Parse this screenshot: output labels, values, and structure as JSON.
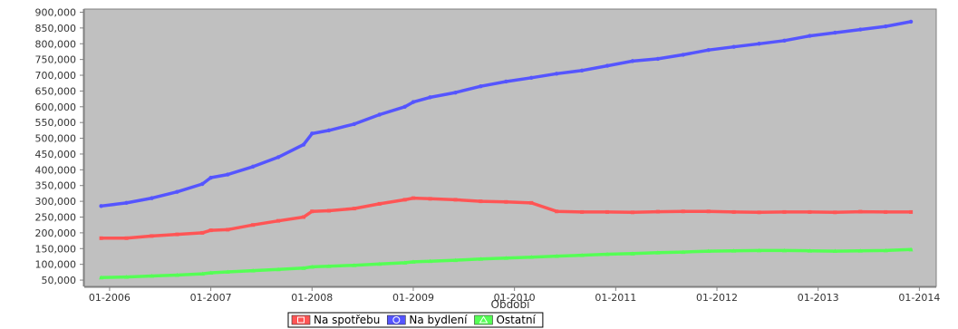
{
  "chart_data": {
    "type": "line",
    "xlabel": "Období",
    "ylabel": "",
    "ylim": [
      30000,
      910000
    ],
    "y_ticks": [
      50000,
      100000,
      150000,
      200000,
      250000,
      300000,
      350000,
      400000,
      450000,
      500000,
      550000,
      600000,
      650000,
      700000,
      750000,
      800000,
      850000,
      900000
    ],
    "y_tick_labels": [
      "50,000",
      "100,000",
      "150,000",
      "200,000",
      "250,000",
      "300,000",
      "350,000",
      "400,000",
      "450,000",
      "500,000",
      "550,000",
      "600,000",
      "650,000",
      "700,000",
      "750,000",
      "800,000",
      "850,000",
      "900,000"
    ],
    "x_range": [
      "2005-10",
      "2014-03"
    ],
    "x_ticks": [
      "2006-01",
      "2007-01",
      "2008-01",
      "2009-01",
      "2010-01",
      "2011-01",
      "2012-01",
      "2013-01",
      "2014-01"
    ],
    "x_tick_labels": [
      "01-2006",
      "01-2007",
      "01-2008",
      "01-2009",
      "01-2010",
      "01-2011",
      "01-2012",
      "01-2013",
      "01-2014"
    ],
    "grid": false,
    "legend_position": "bottom-center",
    "plot_background": "#c0c0c0",
    "series": [
      {
        "name": "Na spotřebu",
        "color": "#ff5555",
        "marker": "square",
        "points": [
          [
            "2005-12",
            183000
          ],
          [
            "2006-03",
            183000
          ],
          [
            "2006-06",
            190000
          ],
          [
            "2006-09",
            195000
          ],
          [
            "2006-12",
            200000
          ],
          [
            "2007-01",
            208000
          ],
          [
            "2007-03",
            210000
          ],
          [
            "2007-06",
            225000
          ],
          [
            "2007-09",
            238000
          ],
          [
            "2007-12",
            250000
          ],
          [
            "2008-01",
            268000
          ],
          [
            "2008-03",
            270000
          ],
          [
            "2008-06",
            277000
          ],
          [
            "2008-09",
            292000
          ],
          [
            "2008-12",
            305000
          ],
          [
            "2009-01",
            310000
          ],
          [
            "2009-03",
            308000
          ],
          [
            "2009-06",
            305000
          ],
          [
            "2009-09",
            300000
          ],
          [
            "2009-12",
            298000
          ],
          [
            "2010-03",
            295000
          ],
          [
            "2010-06",
            268000
          ],
          [
            "2010-09",
            266000
          ],
          [
            "2010-12",
            266000
          ],
          [
            "2011-03",
            265000
          ],
          [
            "2011-06",
            267000
          ],
          [
            "2011-09",
            268000
          ],
          [
            "2011-12",
            268000
          ],
          [
            "2012-03",
            266000
          ],
          [
            "2012-06",
            265000
          ],
          [
            "2012-09",
            266000
          ],
          [
            "2012-12",
            266000
          ],
          [
            "2013-03",
            265000
          ],
          [
            "2013-06",
            267000
          ],
          [
            "2013-09",
            266000
          ],
          [
            "2013-12",
            266000
          ]
        ]
      },
      {
        "name": "Na bydlení",
        "color": "#5555ff",
        "marker": "circle",
        "points": [
          [
            "2005-12",
            285000
          ],
          [
            "2006-03",
            295000
          ],
          [
            "2006-06",
            310000
          ],
          [
            "2006-09",
            330000
          ],
          [
            "2006-12",
            355000
          ],
          [
            "2007-01",
            375000
          ],
          [
            "2007-03",
            385000
          ],
          [
            "2007-06",
            410000
          ],
          [
            "2007-09",
            440000
          ],
          [
            "2007-12",
            480000
          ],
          [
            "2008-01",
            515000
          ],
          [
            "2008-03",
            525000
          ],
          [
            "2008-06",
            545000
          ],
          [
            "2008-09",
            575000
          ],
          [
            "2008-12",
            600000
          ],
          [
            "2009-01",
            615000
          ],
          [
            "2009-03",
            630000
          ],
          [
            "2009-06",
            645000
          ],
          [
            "2009-09",
            665000
          ],
          [
            "2009-12",
            680000
          ],
          [
            "2010-03",
            692000
          ],
          [
            "2010-06",
            705000
          ],
          [
            "2010-09",
            715000
          ],
          [
            "2010-12",
            730000
          ],
          [
            "2011-03",
            745000
          ],
          [
            "2011-06",
            752000
          ],
          [
            "2011-09",
            765000
          ],
          [
            "2011-12",
            780000
          ],
          [
            "2012-03",
            790000
          ],
          [
            "2012-06",
            800000
          ],
          [
            "2012-09",
            810000
          ],
          [
            "2012-12",
            825000
          ],
          [
            "2013-03",
            835000
          ],
          [
            "2013-06",
            845000
          ],
          [
            "2013-09",
            855000
          ],
          [
            "2013-12",
            870000
          ]
        ]
      },
      {
        "name": "Ostatní",
        "color": "#55ff55",
        "marker": "triangle",
        "points": [
          [
            "2005-12",
            58000
          ],
          [
            "2006-03",
            60000
          ],
          [
            "2006-06",
            63000
          ],
          [
            "2006-09",
            66000
          ],
          [
            "2006-12",
            70000
          ],
          [
            "2007-01",
            73000
          ],
          [
            "2007-03",
            76000
          ],
          [
            "2007-06",
            80000
          ],
          [
            "2007-09",
            84000
          ],
          [
            "2007-12",
            88000
          ],
          [
            "2008-01",
            92000
          ],
          [
            "2008-03",
            94000
          ],
          [
            "2008-06",
            97000
          ],
          [
            "2008-09",
            101000
          ],
          [
            "2008-12",
            105000
          ],
          [
            "2009-01",
            108000
          ],
          [
            "2009-03",
            110000
          ],
          [
            "2009-06",
            113000
          ],
          [
            "2009-09",
            117000
          ],
          [
            "2009-12",
            120000
          ],
          [
            "2010-03",
            123000
          ],
          [
            "2010-06",
            126000
          ],
          [
            "2010-09",
            129000
          ],
          [
            "2010-12",
            132000
          ],
          [
            "2011-03",
            134000
          ],
          [
            "2011-06",
            137000
          ],
          [
            "2011-09",
            139000
          ],
          [
            "2011-12",
            142000
          ],
          [
            "2012-03",
            143000
          ],
          [
            "2012-06",
            144000
          ],
          [
            "2012-09",
            144000
          ],
          [
            "2012-12",
            143000
          ],
          [
            "2013-03",
            142000
          ],
          [
            "2013-06",
            143000
          ],
          [
            "2013-09",
            144000
          ],
          [
            "2013-12",
            147000
          ]
        ]
      }
    ]
  }
}
